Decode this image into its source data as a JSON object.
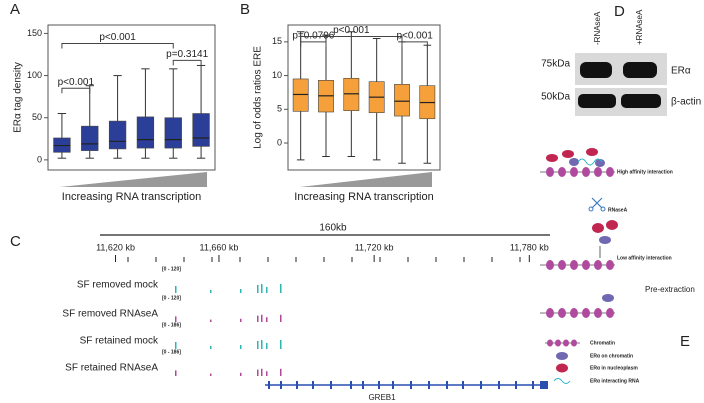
{
  "chart_data": [
    {
      "type": "box",
      "title": null,
      "panel": "A",
      "ylabel": "ERα tag density",
      "xlabel": "Increasing RNA transcription",
      "color": "#2b3f98",
      "ylim": [
        -12,
        160
      ],
      "yticks": [
        0,
        50,
        100,
        150
      ],
      "min": [
        2,
        2,
        2,
        2,
        2,
        2
      ],
      "q1": [
        9,
        11,
        13,
        14,
        14,
        16
      ],
      "median": [
        17,
        19,
        22,
        24,
        24,
        26
      ],
      "q3": [
        26,
        40,
        46,
        51,
        50,
        55
      ],
      "max": [
        55,
        88,
        100,
        108,
        108,
        112
      ],
      "annotations": [
        {
          "label": "p<0.001",
          "from": 0,
          "to": 1,
          "y": 85
        },
        {
          "label": "p<0.001",
          "from": 0,
          "to": 4,
          "y": 138
        },
        {
          "label": "p=0.3141",
          "from": 4,
          "to": 5,
          "y": 118
        }
      ]
    },
    {
      "type": "box",
      "title": null,
      "panel": "B",
      "ylabel": "Log of  odds ratios ERE",
      "xlabel": "Increasing RNA transcription",
      "color": "#f5a03a",
      "ylim": [
        -4,
        17.5
      ],
      "yticks": [
        0,
        5,
        10,
        15
      ],
      "min": [
        -2.5,
        -2,
        -2,
        -2.5,
        -3,
        -3
      ],
      "q1": [
        4.7,
        4.6,
        4.8,
        4.5,
        4,
        3.6
      ],
      "median": [
        7.2,
        7,
        7.3,
        6.8,
        6.2,
        6
      ],
      "q3": [
        9.5,
        9.3,
        9.6,
        9.1,
        8.7,
        8.5
      ],
      "max": [
        16.5,
        16,
        16.5,
        15.5,
        15,
        14.5
      ],
      "annotations": [
        {
          "label": "p=0.0796",
          "from": 0,
          "to": 1,
          "y": 15
        },
        {
          "label": "p<0.001",
          "from": 0,
          "to": 4,
          "y": 15.8
        },
        {
          "label": "p<0.001",
          "from": 4,
          "to": 5,
          "y": 15
        }
      ]
    }
  ],
  "panel_labels": [
    "A",
    "B",
    "C",
    "D",
    "E"
  ],
  "genome": {
    "scale_label": "160kb",
    "xlim": [
      11614,
      11788
    ],
    "ticks": [
      {
        "value": 11620,
        "label": "11,620 kb"
      },
      {
        "value": 11660,
        "label": "11,660 kb"
      },
      {
        "value": 11720,
        "label": "11,720 kb"
      },
      {
        "value": 11780,
        "label": "11,780 kb"
      }
    ],
    "tracks": [
      {
        "name": "SF removed mock",
        "range": "[0 - 120]"
      },
      {
        "name": "SF removed RNAseA",
        "range": "[0 - 120]"
      },
      {
        "name": "SF retained mock",
        "range": "[0 - 186]"
      },
      {
        "name": "SF retained RNAseA",
        "range": "[0 - 186]"
      }
    ],
    "gene": "GREB1"
  },
  "blot": {
    "lanes": [
      "-RNAseA",
      "+RNAseA"
    ],
    "markers": [
      "75kDa",
      "50kDa"
    ],
    "proteins": [
      "ERα",
      "β-actin"
    ]
  },
  "diagram": {
    "high": "High affinity interaction",
    "enzyme": "RNaseA",
    "low": "Low affinity interaction",
    "pre": "Pre-extraction",
    "legend": [
      "Chromatin",
      "ERα on chromatin",
      "ERα in nucleoplasm",
      "ERα interacting RNA"
    ]
  }
}
